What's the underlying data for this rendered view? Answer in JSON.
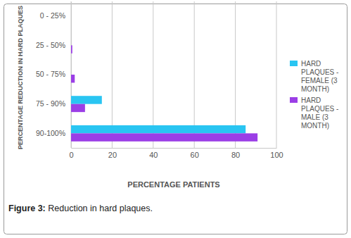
{
  "chart_data": {
    "type": "bar",
    "orientation": "horizontal",
    "title": "Figure 3: Reduction in hard plaques.",
    "x_label": "PERCENTAGE PATIENTS",
    "y_label": "PERCENTAGE REDUCTION IN HARD PLAQUES",
    "categories": [
      "0 - 25%",
      "25 - 50%",
      "50 - 75%",
      "75 - 90%",
      "90-100%"
    ],
    "series": [
      {
        "name": "HARD PLAQUES - FEMALE (3 MONTH)",
        "color": "#29c5f2",
        "values": [
          0,
          0,
          0,
          15,
          85
        ]
      },
      {
        "name": "HARD PLAQUES - MALE (3 MONTH)",
        "color": "#9b3ee6",
        "values": [
          0,
          0.6,
          1.8,
          6.8,
          90.8
        ]
      }
    ],
    "xlim": [
      0,
      100
    ],
    "xticks": [
      0,
      20,
      40,
      60,
      80,
      100
    ],
    "grid": true,
    "legend": "right"
  }
}
